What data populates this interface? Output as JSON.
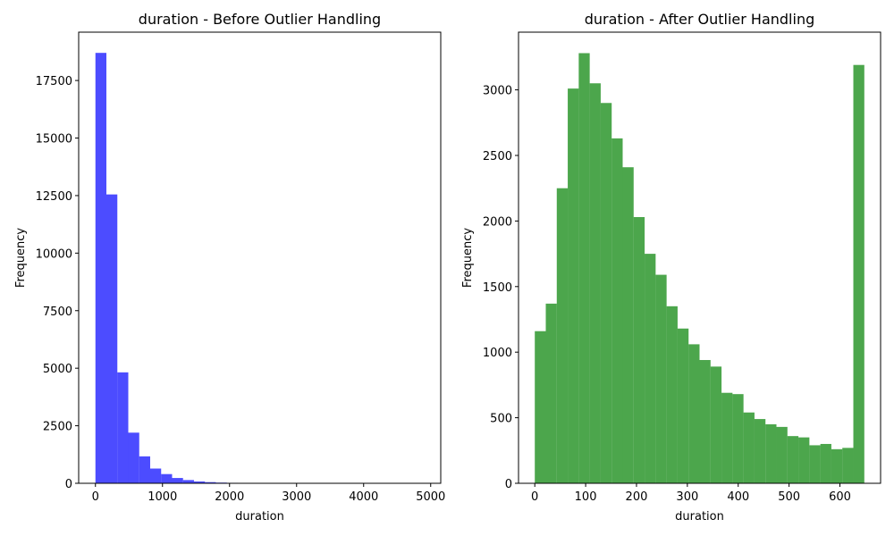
{
  "chart_data": [
    {
      "type": "bar",
      "title": "duration - Before Outlier Handling",
      "xlabel": "duration",
      "ylabel": "Frequency",
      "color": "#0000ff",
      "xlim": [
        -250,
        5150
      ],
      "ylim": [
        0,
        19600
      ],
      "xticks": [
        0,
        1000,
        2000,
        3000,
        4000,
        5000
      ],
      "yticks": [
        0,
        2500,
        5000,
        7500,
        10000,
        12500,
        15000,
        17500
      ],
      "bin_edges": [
        0,
        163.3,
        326.6,
        489.9,
        653.2,
        816.5,
        979.8,
        1143.1,
        1306.4,
        1469.7,
        1633.0,
        1796.3,
        1959.6,
        2122.9,
        2286.2,
        2449.5,
        2612.8,
        2776.1,
        2939.4,
        3102.7,
        3266.0,
        3429.3,
        3592.6,
        3755.9,
        3919.2,
        4082.5,
        4245.8,
        4409.1,
        4572.4,
        4735.7,
        4899.0
      ],
      "values": [
        18700,
        12550,
        4820,
        2200,
        1170,
        640,
        400,
        230,
        140,
        80,
        50,
        30,
        20,
        10,
        8,
        5,
        4,
        3,
        2,
        2,
        1,
        1,
        1,
        1,
        0,
        0,
        0,
        0,
        0,
        1
      ]
    },
    {
      "type": "bar",
      "title": "duration - After Outlier Handling",
      "xlabel": "duration",
      "ylabel": "Frequency",
      "color": "#008000",
      "xlim": [
        -32,
        680
      ],
      "ylim": [
        0,
        3440
      ],
      "xticks": [
        0,
        100,
        200,
        300,
        400,
        500,
        600
      ],
      "yticks": [
        0,
        500,
        1000,
        1500,
        2000,
        2500,
        3000
      ],
      "bin_edges": [
        0,
        21.6,
        43.2,
        64.8,
        86.4,
        108.0,
        129.6,
        151.2,
        172.8,
        194.4,
        216.0,
        237.6,
        259.2,
        280.8,
        302.4,
        324.0,
        345.6,
        367.2,
        388.8,
        410.4,
        432.0,
        453.6,
        475.2,
        496.8,
        518.4,
        540.0,
        561.6,
        583.2,
        604.8,
        626.4,
        648.0
      ],
      "values": [
        1160,
        1370,
        2250,
        3010,
        3280,
        3050,
        2900,
        2630,
        2410,
        2030,
        1750,
        1590,
        1350,
        1180,
        1060,
        940,
        890,
        690,
        680,
        540,
        490,
        450,
        430,
        360,
        350,
        290,
        300,
        260,
        270,
        3190
      ]
    }
  ]
}
